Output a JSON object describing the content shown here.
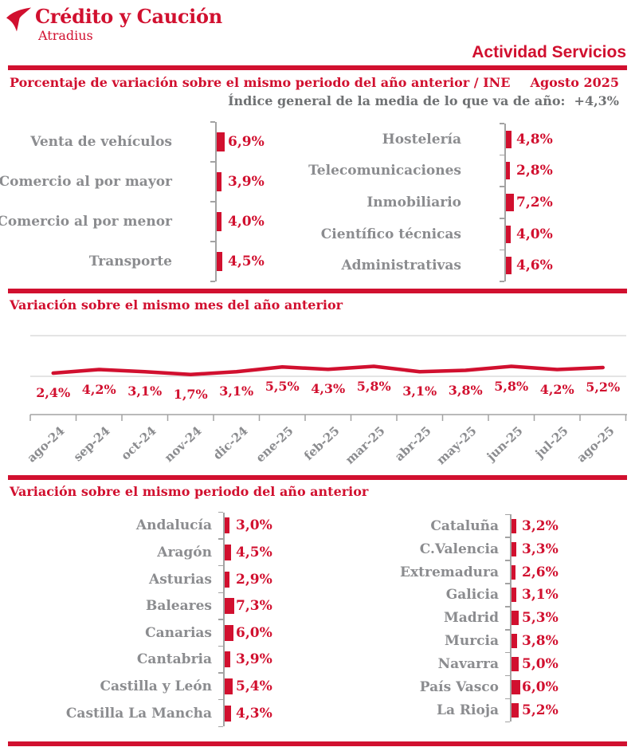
{
  "header": {
    "logo_title": "Crédito y Caución",
    "logo_subtitle": "Atradius",
    "page_title": "Actividad Servicios",
    "logo_icon": "atradius-bird-icon"
  },
  "meta": {
    "period": "Agosto 2025",
    "index_note": "Índice general de la media de lo que va de año:",
    "index_value": "+4,3%",
    "source": "INE"
  },
  "colors": {
    "red": "#D1102F",
    "gray_labels": "#8B8C8F",
    "dark_gray": "#6F7173",
    "axis_gray": "#A3A3A3",
    "gridline_gray": "#DCDCDC",
    "background": "#FFFFFF"
  },
  "chart_data": [
    {
      "id": "sectors",
      "type": "bar",
      "orientation": "horizontal",
      "title": "Porcentaje de variación sobre el mismo periodo del año anterior / INE",
      "unit": "%",
      "legend": false,
      "groups": [
        {
          "side": "left",
          "categories": [
            "Venta de vehículos",
            "Comercio al por mayor",
            "Comercio al por menor",
            "Transporte"
          ],
          "values": [
            6.9,
            3.9,
            4.0,
            4.5
          ],
          "labels": [
            "6,9%",
            "3,9%",
            "4,0%",
            "4,5%"
          ]
        },
        {
          "side": "right",
          "categories": [
            "Hostelería",
            "Telecomunicaciones",
            "Inmobiliario",
            "Científico técnicas",
            "Administrativas"
          ],
          "values": [
            4.8,
            2.8,
            7.2,
            4.0,
            4.6
          ],
          "labels": [
            "4,8%",
            "2,8%",
            "7,2%",
            "4,0%",
            "4,6%"
          ]
        }
      ]
    },
    {
      "id": "monthly",
      "type": "line",
      "title": "Variación sobre el mismo mes del año anterior",
      "unit": "%",
      "grid": true,
      "legend": false,
      "x": [
        "ago-24",
        "sep-24",
        "oct-24",
        "nov-24",
        "dic-24",
        "ene-25",
        "feb-25",
        "mar-25",
        "abr-25",
        "may-25",
        "jun-25",
        "jul-25",
        "ago-25"
      ],
      "values": [
        2.4,
        4.2,
        3.1,
        1.7,
        3.1,
        5.5,
        4.3,
        5.8,
        3.1,
        3.8,
        5.8,
        4.2,
        5.2
      ],
      "labels": [
        "2,4%",
        "4,2%",
        "3,1%",
        "1,7%",
        "3,1%",
        "5,5%",
        "4,3%",
        "5,8%",
        "3,1%",
        "3,8%",
        "5,8%",
        "4,2%",
        "5,2%"
      ]
    },
    {
      "id": "regions",
      "type": "bar",
      "orientation": "horizontal",
      "title": "Variación sobre el mismo periodo del año anterior",
      "unit": "%",
      "legend": false,
      "groups": [
        {
          "side": "left",
          "categories": [
            "Andalucía",
            "Aragón",
            "Asturias",
            "Baleares",
            "Canarias",
            "Cantabria",
            "Castilla y León",
            "Castilla La Mancha"
          ],
          "values": [
            3.0,
            4.5,
            2.9,
            7.3,
            6.0,
            3.9,
            5.4,
            4.3
          ],
          "labels": [
            "3,0%",
            "4,5%",
            "2,9%",
            "7,3%",
            "6,0%",
            "3,9%",
            "5,4%",
            "4,3%"
          ]
        },
        {
          "side": "right",
          "categories": [
            "Cataluña",
            "C.Valencia",
            "Extremadura",
            "Galicia",
            "Madrid",
            "Murcia",
            "Navarra",
            "País Vasco",
            "La Rioja"
          ],
          "values": [
            3.2,
            3.3,
            2.6,
            3.1,
            5.3,
            3.8,
            5.0,
            6.0,
            5.2
          ],
          "labels": [
            "3,2%",
            "3,3%",
            "2,6%",
            "3,1%",
            "5,3%",
            "3,8%",
            "5,0%",
            "6,0%",
            "5,2%"
          ]
        }
      ]
    }
  ]
}
